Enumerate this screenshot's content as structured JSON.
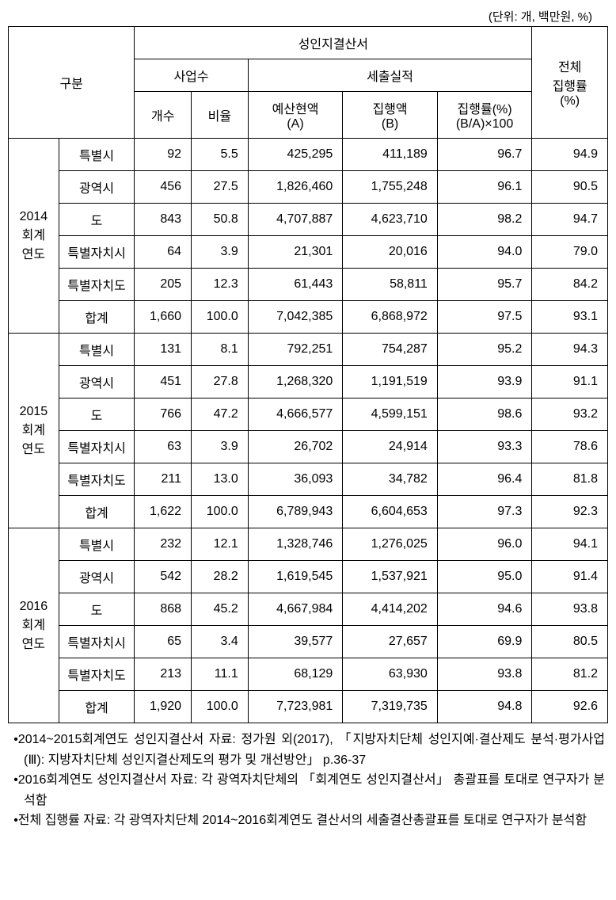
{
  "unit_label": "(단위: 개, 백만원, %)",
  "headers": {
    "category": "구분",
    "report": "성인지결산서",
    "proj_count": "사업수",
    "expenditure": "세출실적",
    "count": "개수",
    "ratio": "비율",
    "budget": "예산현액\n(A)",
    "exec_amt": "집행액\n(B)",
    "exec_rate": "집행률(%)\n(B/A)×100",
    "overall": "전체\n집행률\n(%)"
  },
  "groups": [
    {
      "label": "2014\n회계\n연도",
      "rows": [
        {
          "t": "특별시",
          "c": "92",
          "r": "5.5",
          "a": "425,295",
          "b": "411,189",
          "e": "96.7",
          "o": "94.9"
        },
        {
          "t": "광역시",
          "c": "456",
          "r": "27.5",
          "a": "1,826,460",
          "b": "1,755,248",
          "e": "96.1",
          "o": "90.5"
        },
        {
          "t": "도",
          "c": "843",
          "r": "50.8",
          "a": "4,707,887",
          "b": "4,623,710",
          "e": "98.2",
          "o": "94.7"
        },
        {
          "t": "특별자치시",
          "c": "64",
          "r": "3.9",
          "a": "21,301",
          "b": "20,016",
          "e": "94.0",
          "o": "79.0"
        },
        {
          "t": "특별자치도",
          "c": "205",
          "r": "12.3",
          "a": "61,443",
          "b": "58,811",
          "e": "95.7",
          "o": "84.2"
        },
        {
          "t": "합계",
          "c": "1,660",
          "r": "100.0",
          "a": "7,042,385",
          "b": "6,868,972",
          "e": "97.5",
          "o": "93.1"
        }
      ]
    },
    {
      "label": "2015\n회계\n연도",
      "rows": [
        {
          "t": "특별시",
          "c": "131",
          "r": "8.1",
          "a": "792,251",
          "b": "754,287",
          "e": "95.2",
          "o": "94.3"
        },
        {
          "t": "광역시",
          "c": "451",
          "r": "27.8",
          "a": "1,268,320",
          "b": "1,191,519",
          "e": "93.9",
          "o": "91.1"
        },
        {
          "t": "도",
          "c": "766",
          "r": "47.2",
          "a": "4,666,577",
          "b": "4,599,151",
          "e": "98.6",
          "o": "93.2"
        },
        {
          "t": "특별자치시",
          "c": "63",
          "r": "3.9",
          "a": "26,702",
          "b": "24,914",
          "e": "93.3",
          "o": "78.6"
        },
        {
          "t": "특별자치도",
          "c": "211",
          "r": "13.0",
          "a": "36,093",
          "b": "34,782",
          "e": "96.4",
          "o": "81.8"
        },
        {
          "t": "합계",
          "c": "1,622",
          "r": "100.0",
          "a": "6,789,943",
          "b": "6,604,653",
          "e": "97.3",
          "o": "92.3"
        }
      ]
    },
    {
      "label": "2016\n회계\n연도",
      "rows": [
        {
          "t": "특별시",
          "c": "232",
          "r": "12.1",
          "a": "1,328,746",
          "b": "1,276,025",
          "e": "96.0",
          "o": "94.1"
        },
        {
          "t": "광역시",
          "c": "542",
          "r": "28.2",
          "a": "1,619,545",
          "b": "1,537,921",
          "e": "95.0",
          "o": "91.4"
        },
        {
          "t": "도",
          "c": "868",
          "r": "45.2",
          "a": "4,667,984",
          "b": "4,414,202",
          "e": "94.6",
          "o": "93.8"
        },
        {
          "t": "특별자치시",
          "c": "65",
          "r": "3.4",
          "a": "39,577",
          "b": "27,657",
          "e": "69.9",
          "o": "80.5"
        },
        {
          "t": "특별자치도",
          "c": "213",
          "r": "11.1",
          "a": "68,129",
          "b": "63,930",
          "e": "93.8",
          "o": "81.2"
        },
        {
          "t": "합계",
          "c": "1,920",
          "r": "100.0",
          "a": "7,723,981",
          "b": "7,319,735",
          "e": "94.8",
          "o": "92.6"
        }
      ]
    }
  ],
  "notes": [
    "•2014~2015회계연도 성인지결산서 자료: 정가원 외(2017), 「지방자치단체 성인지예·결산제도 분석·평가사업(Ⅲ): 지방자치단체 성인지결산제도의 평가 및 개선방안」 p.36-37",
    "•2016회계연도 성인지결산서 자료: 각 광역자치단체의 「회계연도 성인지결산서」 총괄표를 토대로 연구자가 분석함",
    "•전체 집행률 자료: 각 광역자치단체 2014~2016회계연도 결산서의 세출결산총괄표를 토대로 연구자가 분석함"
  ],
  "colors": {
    "border": "#000000",
    "bg": "#ffffff"
  }
}
